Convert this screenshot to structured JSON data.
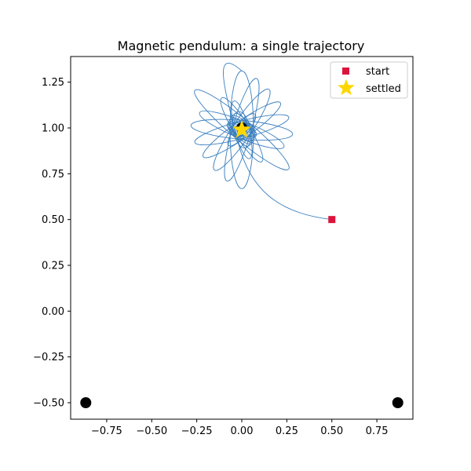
{
  "chart_data": {
    "type": "scatter",
    "title": "Magnetic pendulum: a single trajectory",
    "xlabel": "",
    "ylabel": "",
    "xlim": [
      -0.95,
      0.95
    ],
    "ylim": [
      -0.59,
      1.39
    ],
    "xticks": [
      -0.75,
      -0.5,
      -0.25,
      0.0,
      0.25,
      0.5,
      0.75
    ],
    "xtick_labels": [
      "−0.75",
      "−0.50",
      "−0.25",
      "0.00",
      "0.25",
      "0.50",
      "0.75"
    ],
    "yticks": [
      -0.5,
      -0.25,
      0.0,
      0.25,
      0.5,
      0.75,
      1.0,
      1.25
    ],
    "ytick_labels": [
      "−0.50",
      "−0.25",
      "0.00",
      "0.25",
      "0.50",
      "0.75",
      "1.00",
      "1.25"
    ],
    "grid": false,
    "legend_position": "top-right",
    "magnets": [
      {
        "x": 0.0,
        "y": 1.0
      },
      {
        "x": -0.866,
        "y": -0.5
      },
      {
        "x": 0.866,
        "y": -0.5
      }
    ],
    "start": {
      "name": "start",
      "x": 0.5,
      "y": 0.5
    },
    "settled": {
      "name": "settled",
      "x": 0.0,
      "y": 0.99
    },
    "colors": {
      "trajectory": "#3a7fbf",
      "start": "#dc143c",
      "settled": "#ffd700",
      "magnet": "#000000",
      "axes": "#000000"
    }
  },
  "legend": {
    "start_label": "start",
    "settled_label": "settled"
  }
}
